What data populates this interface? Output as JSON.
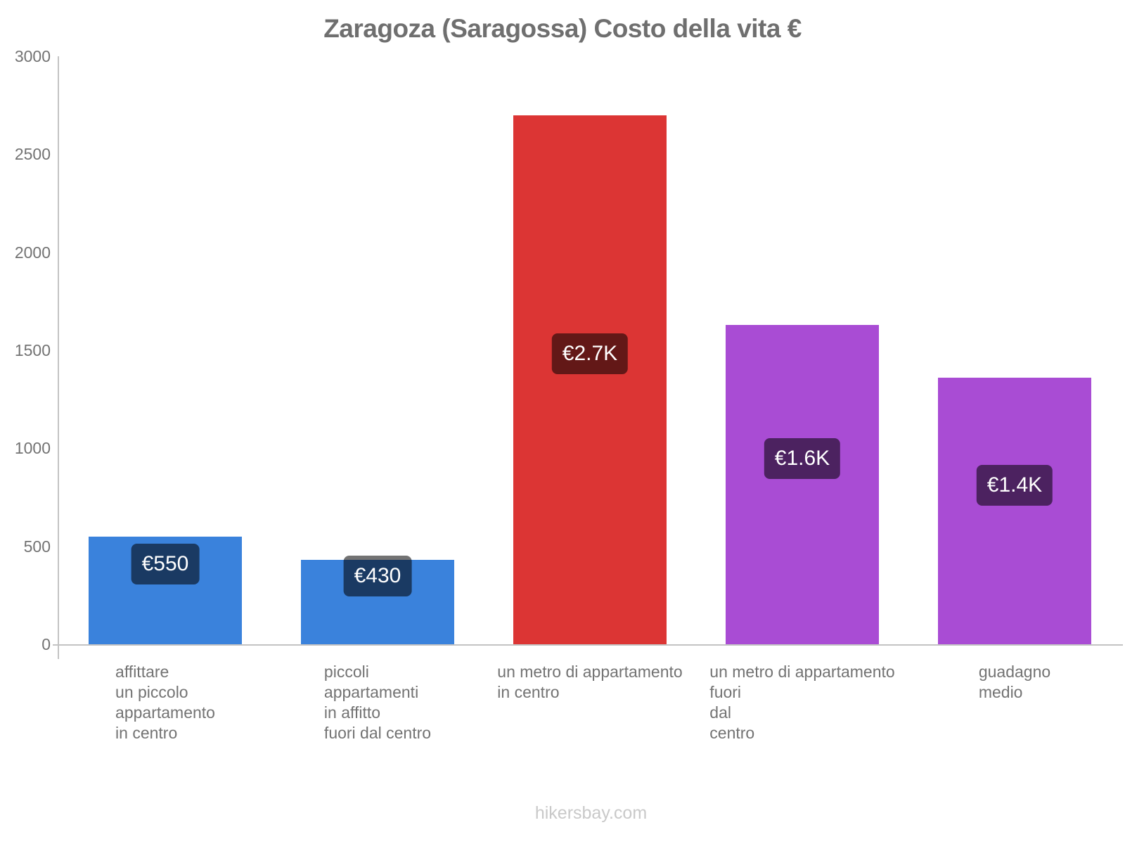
{
  "title": "Zaragoza (Saragossa) Costo della vita €",
  "footer": "hikersbay.com",
  "chart_data": {
    "type": "bar",
    "title": "Zaragoza (Saragossa) Costo della vita €",
    "categories": [
      "affittare un piccolo appartamento in centro",
      "piccoli appartamenti in affitto fuori dal centro",
      "un metro di appartamento in centro",
      "un metro di appartamento fuori dal centro",
      "guadagno medio"
    ],
    "category_lines": [
      [
        "affittare",
        "un piccolo",
        "appartamento",
        "in centro"
      ],
      [
        "piccoli",
        "appartamenti",
        "in affitto",
        "fuori dal centro"
      ],
      [
        "un metro di appartamento",
        "in centro"
      ],
      [
        "un metro di appartamento",
        "fuori",
        "dal",
        "centro"
      ],
      [
        "guadagno",
        "medio"
      ]
    ],
    "values": [
      550,
      430,
      2700,
      1630,
      1360
    ],
    "value_labels": [
      "€550",
      "€430",
      "€2.7K",
      "€1.6K",
      "€1.4K"
    ],
    "bar_colors": [
      "#3A82DC",
      "#3A82DC",
      "#DC3534",
      "#A94CD4",
      "#A94CD4"
    ],
    "ylim": [
      0,
      3000
    ],
    "yticks": [
      0,
      500,
      1000,
      1500,
      2000,
      2500,
      3000
    ],
    "xlabel": "",
    "ylabel": "",
    "grid": false,
    "legend": false,
    "currency": "€"
  },
  "colors": {
    "bar_blue": "#3A82DC",
    "bar_red": "#DC3534",
    "bar_purple": "#A94CD4",
    "axis_line": "#C3C3C3",
    "text_gray": "#737373",
    "title_gray": "#6F6F6F",
    "value_label_bg": "rgba(0,0,0,0.55)",
    "value_label_text": "#FFFFFF",
    "watermark_gray": "#C9C9C9"
  }
}
